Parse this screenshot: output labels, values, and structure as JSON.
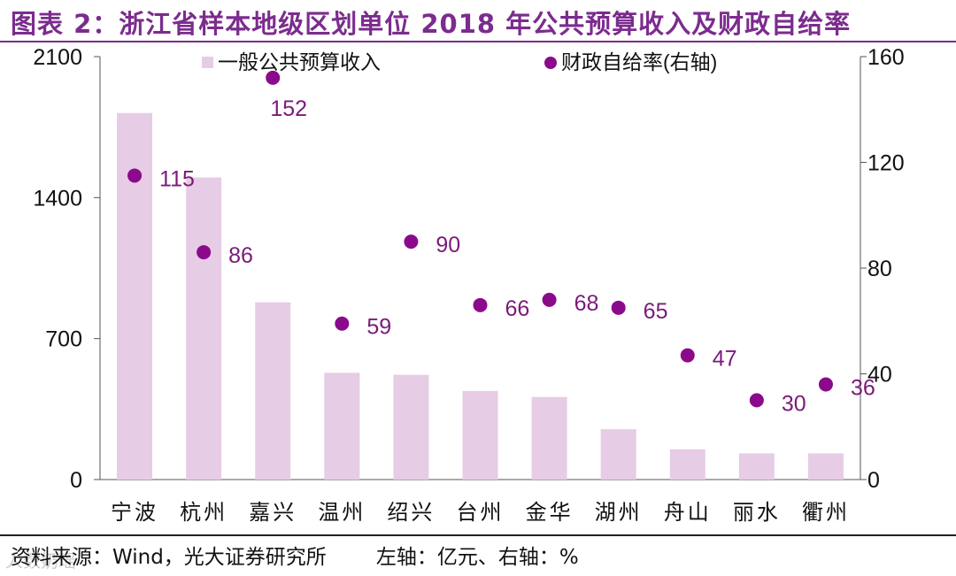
{
  "title": "图表 2：浙江省样本地级区划单位 2018 年公共预算收入及财政自给率",
  "source": {
    "text": "资料来源：Wind，光大证券研究所",
    "axis_note": "左轴：亿元、右轴：%"
  },
  "watermark": "人数奶瑶",
  "colors": {
    "title": "#7B2C8E",
    "bar": "#E6CCE5",
    "dot": "#8B0A8B",
    "label": "#7A1A7A"
  },
  "chart_data": {
    "type": "bar",
    "categories": [
      "宁波",
      "杭州",
      "嘉兴",
      "温州",
      "绍兴",
      "台州",
      "金华",
      "湖州",
      "舟山",
      "丽水",
      "衢州"
    ],
    "series": [
      {
        "name": "一般公共预算收入",
        "axis": "left",
        "type": "bar",
        "values": [
          1820,
          1500,
          880,
          530,
          520,
          440,
          410,
          250,
          150,
          130,
          130
        ]
      },
      {
        "name": "财政自给率(右轴)",
        "axis": "right",
        "type": "scatter",
        "values": [
          115,
          86,
          152,
          59,
          90,
          66,
          68,
          65,
          47,
          30,
          36
        ]
      }
    ],
    "left_axis": {
      "min": 0,
      "max": 2100,
      "ticks": [
        0,
        700,
        1400,
        2100
      ]
    },
    "right_axis": {
      "min": 0,
      "max": 160,
      "ticks": [
        0,
        40,
        80,
        120,
        160
      ]
    },
    "legend": [
      "一般公共预算收入",
      "财政自给率(右轴)"
    ],
    "legend_position": "top"
  }
}
